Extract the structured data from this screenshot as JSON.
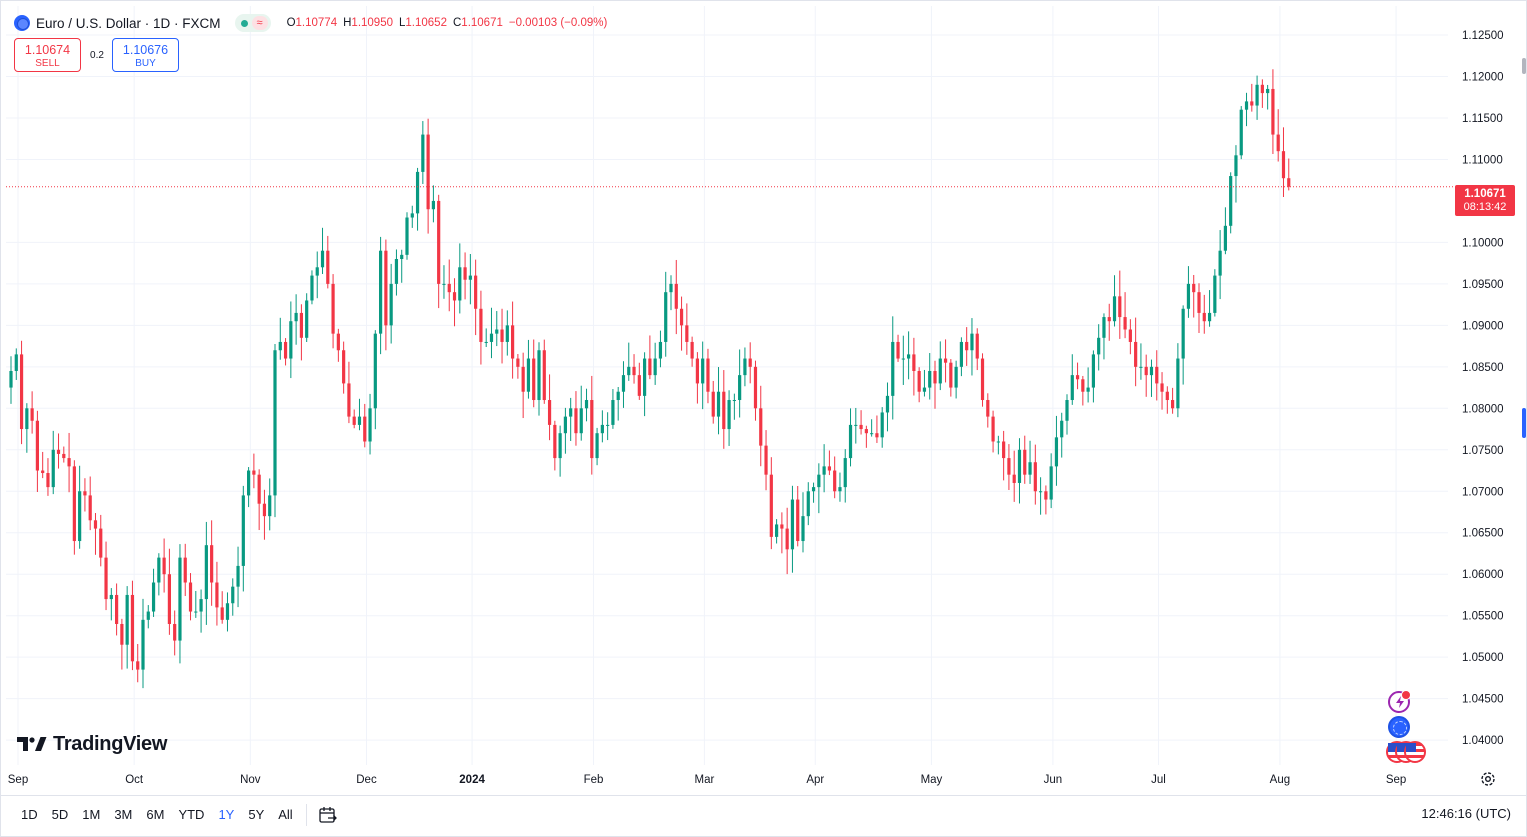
{
  "header": {
    "symbol_title": "Euro / U.S. Dollar · 1D · FXCM",
    "market_status_icon": "market-open-dot-icon",
    "approx_symbol": "≈",
    "ohlc": {
      "o_label": "O",
      "o_value": "1.10774",
      "h_label": "H",
      "h_value": "1.10950",
      "l_label": "L",
      "l_value": "1.10652",
      "c_label": "C",
      "c_value": "1.10671",
      "change": "−0.00103 (−0.09%)"
    }
  },
  "trade": {
    "sell_price": "1.10674",
    "sell_label": "SELL",
    "spread": "0.2",
    "buy_price": "1.10676",
    "buy_label": "BUY"
  },
  "brand": {
    "wordmark": "TradingView"
  },
  "price_label": {
    "value": "1.10671",
    "countdown": "08:13:42"
  },
  "bottom_bar": {
    "ranges": [
      "1D",
      "5D",
      "1M",
      "3M",
      "6M",
      "YTD",
      "1Y",
      "5Y",
      "All"
    ],
    "active_range": "1Y",
    "clock": "12:46:16 (UTC)"
  },
  "colors": {
    "up": "#089981",
    "down": "#f23645",
    "grid": "#f0f3fa",
    "accent": "#2962ff"
  },
  "chart_data": {
    "type": "candlestick",
    "ylim": [
      1.037,
      1.1285
    ],
    "y_ticks": [
      "1.12500",
      "1.12000",
      "1.11500",
      "1.11000",
      "1.10000",
      "1.09500",
      "1.09000",
      "1.08500",
      "1.08000",
      "1.07500",
      "1.07000",
      "1.06500",
      "1.06000",
      "1.05500",
      "1.05000",
      "1.04500",
      "1.04000"
    ],
    "x_ticks": [
      {
        "label": "Sep",
        "index": 0
      },
      {
        "label": "Oct",
        "index": 22
      },
      {
        "label": "Nov",
        "index": 44
      },
      {
        "label": "Dec",
        "index": 66
      },
      {
        "label": "2024",
        "index": 86,
        "bold": true
      },
      {
        "label": "Feb",
        "index": 109
      },
      {
        "label": "Mar",
        "index": 130
      },
      {
        "label": "Apr",
        "index": 151
      },
      {
        "label": "May",
        "index": 173
      },
      {
        "label": "Jun",
        "index": 196
      },
      {
        "label": "Jul",
        "index": 216
      },
      {
        "label": "Aug",
        "index": 239
      },
      {
        "label": "Sep",
        "index": 261
      }
    ],
    "current_price": 1.10671,
    "closes": [
      1.0845,
      1.0865,
      1.0775,
      1.08,
      1.0785,
      1.0725,
      1.0722,
      1.0705,
      1.075,
      1.0745,
      1.074,
      1.073,
      1.064,
      1.07,
      1.0695,
      1.0665,
      1.0655,
      1.062,
      1.057,
      1.0575,
      1.054,
      1.0515,
      1.0575,
      1.0495,
      1.0485,
      1.0545,
      1.0555,
      1.059,
      1.062,
      1.06,
      1.054,
      1.052,
      1.062,
      1.059,
      1.0555,
      1.0555,
      1.057,
      1.0635,
      1.059,
      1.056,
      1.0545,
      1.0565,
      1.0585,
      1.061,
      1.0695,
      1.0725,
      1.072,
      1.0685,
      1.067,
      1.0695,
      1.087,
      1.088,
      1.086,
      1.0905,
      1.0915,
      1.0885,
      1.093,
      1.096,
      1.097,
      1.099,
      1.095,
      1.089,
      1.087,
      1.083,
      1.079,
      1.078,
      1.079,
      1.076,
      1.08,
      1.089,
      1.099,
      1.09,
      1.095,
      1.098,
      1.0985,
      1.103,
      1.1035,
      1.1085,
      1.113,
      1.104,
      1.105,
      1.095,
      1.095,
      1.094,
      1.093,
      1.097,
      1.0955,
      1.096,
      1.092,
      1.088,
      1.088,
      1.089,
      1.0895,
      1.088,
      1.09,
      1.086,
      1.085,
      1.082,
      1.086,
      1.081,
      1.087,
      1.081,
      1.078,
      1.074,
      1.077,
      1.079,
      1.08,
      1.077,
      1.08,
      1.081,
      1.074,
      1.077,
      1.078,
      1.078,
      1.081,
      1.082,
      1.084,
      1.085,
      1.084,
      1.0815,
      1.086,
      1.084,
      1.086,
      1.088,
      1.094,
      1.095,
      1.092,
      1.09,
      1.088,
      1.086,
      1.083,
      1.086,
      1.082,
      1.079,
      1.082,
      1.0775,
      1.081,
      1.081,
      1.084,
      1.086,
      1.085,
      1.08,
      1.0755,
      1.072,
      1.0645,
      1.066,
      1.0655,
      1.063,
      1.069,
      1.064,
      1.067,
      1.07,
      1.0705,
      1.072,
      1.073,
      1.0725,
      1.07,
      1.0705,
      1.074,
      1.078,
      1.078,
      1.0775,
      1.077,
      1.077,
      1.0765,
      1.0795,
      1.0815,
      1.088,
      1.086,
      1.086,
      1.0865,
      1.0845,
      1.082,
      1.0825,
      1.0845,
      1.083,
      1.086,
      1.0855,
      1.0825,
      1.085,
      1.088,
      1.087,
      1.089,
      1.086,
      1.081,
      1.079,
      1.076,
      1.076,
      1.074,
      1.072,
      1.071,
      1.075,
      1.072,
      1.0735,
      1.07,
      1.07,
      1.069,
      1.073,
      1.0765,
      1.0785,
      1.081,
      1.084,
      1.0835,
      1.082,
      1.0825,
      1.0865,
      1.0885,
      1.091,
      1.0905,
      1.0935,
      1.091,
      1.0895,
      1.088,
      1.085,
      1.085,
      1.084,
      1.085,
      1.083,
      1.082,
      1.081,
      1.08,
      1.086,
      1.092,
      1.095,
      1.094,
      1.0915,
      1.0905,
      1.0915,
      1.096,
      1.099,
      1.102,
      1.108,
      1.1105,
      1.116,
      1.117,
      1.1165,
      1.119,
      1.118,
      1.1185,
      1.113,
      1.111,
      1.10774,
      1.10671
    ]
  }
}
